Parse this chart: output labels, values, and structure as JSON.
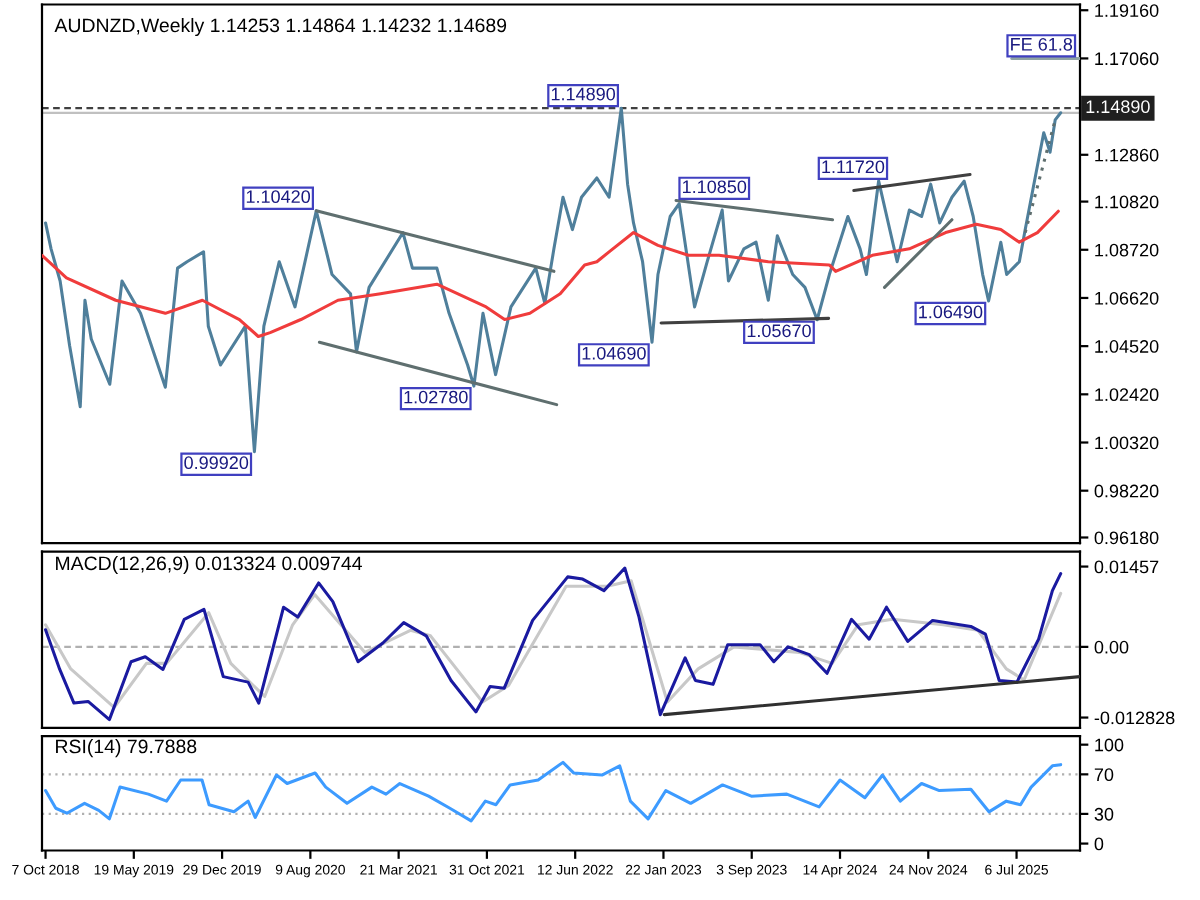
{
  "chart_data": [
    {
      "type": "line",
      "title": "AUDNZD,Weekly 1.14253 1.14864 1.14232 1.14689",
      "tick_labels": "y",
      "xlim": [
        "2018-09-28",
        "2025-12-14"
      ],
      "ylim": [
        0.9593,
        1.1941
      ],
      "yticks": [
        {
          "value": 1.1916,
          "label": "1.19160"
        },
        {
          "value": 1.1706,
          "label": "1.17060"
        },
        {
          "value": 1.1286,
          "label": "1.12860"
        },
        {
          "value": 1.1082,
          "label": "1.10820"
        },
        {
          "value": 1.0872,
          "label": "1.08720"
        },
        {
          "value": 1.0662,
          "label": "1.06620"
        },
        {
          "value": 1.0452,
          "label": "1.04520"
        },
        {
          "value": 1.0242,
          "label": "1.02420"
        },
        {
          "value": 1.0032,
          "label": "1.00320"
        },
        {
          "value": 0.9822,
          "label": "0.98220"
        },
        {
          "value": 0.9618,
          "label": "0.96180"
        }
      ],
      "series": [
        {
          "color": "#4f7f9b",
          "x": [
            "2018-10-07",
            "2018-10-21",
            "2018-11-13",
            "2018-12-07",
            "2019-01-03",
            "2019-01-15",
            "2019-01-31",
            "2019-03-19",
            "2019-04-19",
            "2019-06-05",
            "2019-08-07",
            "2019-09-07",
            "2019-10-01",
            "2019-11-12",
            "2019-11-24",
            "2019-12-25",
            "2020-02-26",
            "2020-03-20",
            "2020-04-13",
            "2020-05-22",
            "2020-07-01",
            "2020-08-24",
            "2020-10-03",
            "2020-11-19",
            "2020-12-04",
            "2021-01-05",
            "2021-04-01",
            "2021-04-25",
            "2021-06-26",
            "2021-07-27",
            "2021-09-12",
            "2021-09-28",
            "2021-10-21",
            "2021-11-22",
            "2021-12-31",
            "2022-03-04",
            "2022-03-27",
            "2022-04-19",
            "2022-05-12",
            "2022-06-05",
            "2022-06-28",
            "2022-08-06",
            "2022-09-06",
            "2022-10-07",
            "2022-10-23",
            "2022-11-07",
            "2022-11-30",
            "2022-12-24",
            "2023-01-08",
            "2023-02-08",
            "2023-03-03",
            "2023-04-11",
            "2023-05-13",
            "2023-06-20",
            "2023-07-06",
            "2023-08-14",
            "2023-09-14",
            "2023-10-15",
            "2023-11-07",
            "2023-12-16",
            "2024-01-16",
            "2024-02-16",
            "2024-03-18",
            "2024-05-04",
            "2024-06-04",
            "2024-06-20",
            "2024-07-21",
            "2024-09-06",
            "2024-10-07",
            "2024-11-07",
            "2024-11-30",
            "2024-12-23",
            "2025-01-23",
            "2025-02-23",
            "2025-03-18",
            "2025-04-11",
            "2025-04-26",
            "2025-05-27",
            "2025-06-11",
            "2025-07-13",
            "2025-07-28",
            "2025-09-13",
            "2025-09-29",
            "2025-10-12",
            "2025-10-26"
          ],
          "values": [
            1.0989,
            1.0876,
            1.0736,
            1.0455,
            1.0188,
            1.0652,
            1.0483,
            1.0286,
            1.0736,
            1.0595,
            1.0273,
            1.0792,
            1.082,
            1.0863,
            1.0539,
            1.037,
            1.0539,
            0.9992,
            1.0539,
            1.082,
            1.0623,
            1.1042,
            1.0764,
            1.068,
            1.0427,
            1.0708,
            1.0947,
            1.0792,
            1.0792,
            1.0595,
            1.037,
            1.0278,
            1.0595,
            1.0328,
            1.0623,
            1.0792,
            1.0638,
            1.0876,
            1.1101,
            1.096,
            1.1101,
            1.1185,
            1.1101,
            1.1489,
            1.1158,
            1.0989,
            1.082,
            1.0469,
            1.0764,
            1.1017,
            1.1073,
            1.0623,
            1.082,
            1.1045,
            1.0736,
            1.0876,
            1.0905,
            1.0652,
            1.0933,
            1.0764,
            1.0708,
            1.0567,
            1.0764,
            1.1017,
            1.0876,
            1.0764,
            1.1172,
            1.082,
            1.1045,
            1.1017,
            1.1158,
            1.0989,
            1.1101,
            1.1171,
            1.1017,
            1.0764,
            1.0649,
            1.0905,
            1.0764,
            1.082,
            1.096,
            1.1382,
            1.1297,
            1.1438,
            1.1469
          ]
        },
        {
          "color": "#f03c3c",
          "x": [
            "2018-09-28",
            "2018-11-29",
            "2019-04-03",
            "2019-08-07",
            "2019-11-09",
            "2020-02-11",
            "2020-03-30",
            "2020-04-29",
            "2020-07-16",
            "2020-10-18",
            "2021-02-03",
            "2021-06-26",
            "2021-10-29",
            "2021-12-15",
            "2022-02-17",
            "2022-05-05",
            "2022-07-06",
            "2022-08-06",
            "2022-09-06",
            "2022-11-07",
            "2023-01-08",
            "2023-03-26",
            "2023-06-12",
            "2023-10-15",
            "2024-03-18",
            "2024-04-03",
            "2024-07-05",
            "2024-10-07",
            "2025-01-07",
            "2025-03-26",
            "2025-05-27",
            "2025-07-13",
            "2025-08-28",
            "2025-10-20"
          ],
          "values": [
            1.0848,
            1.075,
            1.0652,
            1.0595,
            1.0652,
            1.0568,
            1.0494,
            1.0511,
            1.0568,
            1.0652,
            1.068,
            1.0722,
            1.0623,
            1.0568,
            1.0595,
            1.068,
            1.0806,
            1.082,
            1.0863,
            1.0947,
            1.0891,
            1.0848,
            1.0848,
            1.082,
            1.0806,
            1.0778,
            1.0848,
            1.0876,
            1.0947,
            1.0983,
            1.096,
            1.0905,
            1.0947,
            1.104
          ]
        },
        {
          "color": "#5f6f6f",
          "x": [
            "2020-08-24",
            "2022-04-19"
          ],
          "values": [
            1.1042,
            1.0778
          ]
        },
        {
          "color": "#5f6f6f",
          "x": [
            "2020-09-01",
            "2022-04-26"
          ],
          "values": [
            1.0469,
            1.0197
          ]
        },
        {
          "color": "#5f6f6f",
          "x": [
            "2023-02-23",
            "2024-03-26"
          ],
          "values": [
            1.1087,
            1.1003
          ]
        },
        {
          "color": "#404040",
          "x": [
            "2023-01-16",
            "2024-03-16"
          ],
          "values": [
            1.0553,
            1.0573
          ]
        },
        {
          "color": "#404040",
          "x": [
            "2024-05-19",
            "2025-03-10"
          ],
          "values": [
            1.113,
            1.12
          ]
        },
        {
          "color": "#5f6f6f",
          "x": [
            "2024-08-05",
            "2025-01-23"
          ],
          "values": [
            1.0708,
            1.1003
          ]
        },
        {
          "color": "#5f6f6f",
          "line_style": "dotted",
          "x": [
            "2025-07-28",
            "2025-10-12"
          ],
          "values": [
            1.0947,
            1.1438
          ]
        },
        {
          "color": "#8fa3a3",
          "x": [
            "2025-06-24",
            "2025-12-14"
          ],
          "values": [
            1.1706,
            1.1706
          ]
        }
      ],
      "ref_lines": [
        {
          "axis": "y",
          "value": 1.1489,
          "label": "1.14890",
          "color": "#404040",
          "line_style": "dashed"
        },
        {
          "axis": "y",
          "value": 1.1469,
          "color": "#c0c0c0",
          "line_style": "solid"
        }
      ],
      "annotations": [
        {
          "text": "1.10420",
          "x": "2020-08-24",
          "y": 1.1042
        },
        {
          "text": "0.99920",
          "x": "2020-03-20",
          "y": 0.9992
        },
        {
          "text": "1.02780",
          "x": "2021-09-28",
          "y": 1.0278
        },
        {
          "text": "1.14890",
          "x": "2022-10-07",
          "y": 1.1489
        },
        {
          "text": "1.10850",
          "x": "2023-02-23",
          "y": 1.1085
        },
        {
          "text": "1.04690",
          "x": "2022-12-24",
          "y": 1.0469
        },
        {
          "text": "1.05670",
          "x": "2024-02-16",
          "y": 1.0567
        },
        {
          "text": "1.11720",
          "x": "2024-08-20",
          "y": 1.1172
        },
        {
          "text": "1.06490",
          "x": "2025-04-26",
          "y": 1.0649
        },
        {
          "text": "FE 61.8",
          "x": "2025-12-10",
          "y": 1.1706
        }
      ]
    },
    {
      "type": "line",
      "title": "MACD(12,26,9) 0.013324 0.009744",
      "tick_labels": "y",
      "xlim": [
        "2018-09-28",
        "2025-12-14"
      ],
      "ylim": [
        -0.0147,
        0.0173
      ],
      "yticks": [
        0.01457,
        {
          "value": 0,
          "label": "0.00"
        },
        -0.012828
      ],
      "series": [
        {
          "color": "#c8c8c8",
          "x": [
            "2018-10-07",
            "2018-12-10",
            "2019-03-30",
            "2019-06-20",
            "2019-08-10",
            "2019-11-25",
            "2020-01-20",
            "2020-04-15",
            "2020-06-25",
            "2020-08-20",
            "2020-12-25",
            "2021-04-20",
            "2021-06-10",
            "2021-10-20",
            "2021-12-25",
            "2022-05-20",
            "2022-09-01",
            "2022-11-01",
            "2023-02-01",
            "2023-04-20",
            "2023-07-20",
            "2024-01-01",
            "2024-03-25",
            "2024-05-30",
            "2024-08-25",
            "2025-01-01",
            "2025-03-30",
            "2025-06-10",
            "2025-07-25",
            "2025-10-26"
          ],
          "values": [
            0.004,
            -0.004,
            -0.011,
            -0.003,
            -0.003,
            0.0062,
            -0.003,
            -0.009,
            0.004,
            0.0095,
            -0.001,
            0.003,
            0.002,
            -0.01,
            -0.007,
            0.011,
            0.011,
            0.012,
            -0.01,
            -0.004,
            0.0,
            -0.001,
            -0.003,
            0.004,
            0.005,
            0.004,
            0.003,
            -0.004,
            -0.006,
            0.0097
          ]
        },
        {
          "color": "#1a1aa0",
          "x": [
            "2018-10-07",
            "2018-11-12",
            "2018-12-18",
            "2019-01-23",
            "2019-03-18",
            "2019-05-12",
            "2019-06-17",
            "2019-08-01",
            "2019-09-24",
            "2019-11-13",
            "2020-01-01",
            "2020-03-04",
            "2020-03-31",
            "2020-06-02",
            "2020-07-08",
            "2020-08-30",
            "2020-10-05",
            "2020-12-08",
            "2021-02-09",
            "2021-04-03",
            "2021-05-30",
            "2021-08-01",
            "2021-10-03",
            "2021-11-08",
            "2021-12-14",
            "2022-02-24",
            "2022-05-24",
            "2022-07-01",
            "2022-08-24",
            "2022-10-16",
            "2022-11-21",
            "2023-01-14",
            "2023-03-18",
            "2023-04-13",
            "2023-05-28",
            "2023-07-04",
            "2023-09-24",
            "2023-10-29",
            "2023-12-04",
            "2024-01-27",
            "2024-03-12",
            "2024-05-13",
            "2024-06-27",
            "2024-08-10",
            "2024-10-03",
            "2024-12-05",
            "2025-03-12",
            "2025-04-18",
            "2025-05-23",
            "2025-07-07",
            "2025-08-31",
            "2025-10-05",
            "2025-10-26"
          ],
          "values": [
            0.0031,
            -0.0041,
            -0.0102,
            -0.0099,
            -0.0132,
            -0.0027,
            -0.0018,
            -0.0041,
            0.005,
            0.0068,
            -0.0054,
            -0.0064,
            -0.0102,
            0.0072,
            0.0054,
            0.0116,
            0.0082,
            -0.0027,
            0.0007,
            0.0044,
            0.002,
            -0.0061,
            -0.0118,
            -0.0072,
            -0.0075,
            0.0048,
            0.0127,
            0.0123,
            0.0102,
            0.0143,
            0.0054,
            -0.0123,
            -0.002,
            -0.0061,
            -0.0068,
            0.0004,
            0.0004,
            -0.0027,
            0.0,
            -0.0014,
            -0.0048,
            0.005,
            0.0014,
            0.0072,
            0.001,
            0.0048,
            0.0037,
            0.0023,
            -0.0061,
            -0.0064,
            0.0014,
            0.0102,
            0.0133
          ]
        },
        {
          "color": "#303030",
          "x": [
            "2023-01-24",
            "2025-12-14"
          ],
          "values": [
            -0.0123,
            -0.0054
          ]
        }
      ],
      "ref_lines": [
        {
          "axis": "y",
          "value": 0,
          "color": "#b0b0b0",
          "line_style": "dashed"
        }
      ]
    },
    {
      "type": "line",
      "title": "RSI(14) 79.7888",
      "xlim": [
        "2018-09-28",
        "2025-12-14"
      ],
      "xticks": [
        {
          "value": "2018-10-07",
          "label": "7 Oct 2018"
        },
        {
          "value": "2019-05-19",
          "label": "19 May 2019"
        },
        {
          "value": "2019-12-29",
          "label": "29 Dec 2019"
        },
        {
          "value": "2020-08-09",
          "label": "9 Aug 2020"
        },
        {
          "value": "2021-03-21",
          "label": "21 Mar 2021"
        },
        {
          "value": "2021-10-31",
          "label": "31 Oct 2021"
        },
        {
          "value": "2022-06-12",
          "label": "12 Jun 2022"
        },
        {
          "value": "2023-01-22",
          "label": "22 Jan 2023"
        },
        {
          "value": "2023-09-03",
          "label": "3 Sep 2023"
        },
        {
          "value": "2024-04-14",
          "label": "14 Apr 2024"
        },
        {
          "value": "2024-11-24",
          "label": "24 Nov 2024"
        },
        {
          "value": "2025-07-06",
          "label": "6 Jul 2025"
        }
      ],
      "ylim": [
        -7,
        108.6
      ],
      "yticks": [
        100,
        70,
        30,
        0
      ],
      "series": [
        {
          "color": "#3d9bff",
          "x": [
            "2018-10-07",
            "2018-11-02",
            "2018-11-30",
            "2019-01-14",
            "2019-02-19",
            "2019-03-18",
            "2019-04-14",
            "2019-06-25",
            "2019-08-10",
            "2019-09-15",
            "2019-11-08",
            "2019-11-26",
            "2020-01-28",
            "2020-03-04",
            "2020-03-22",
            "2020-05-15",
            "2020-06-11",
            "2020-08-21",
            "2020-09-17",
            "2020-11-10",
            "2021-01-12",
            "2021-02-17",
            "2021-03-24",
            "2021-06-05",
            "2021-07-29",
            "2021-09-21",
            "2021-10-27",
            "2021-11-23",
            "2021-12-29",
            "2022-03-10",
            "2022-05-12",
            "2022-06-08",
            "2022-08-19",
            "2022-10-03",
            "2022-10-30",
            "2022-12-14",
            "2023-01-28",
            "2023-04-01",
            "2023-06-21",
            "2023-09-02",
            "2023-12-01",
            "2024-02-21",
            "2024-04-14",
            "2024-06-16",
            "2024-07-31",
            "2024-09-14",
            "2024-11-07",
            "2024-12-22",
            "2025-03-12",
            "2025-04-27",
            "2025-06-10",
            "2025-07-16",
            "2025-08-12",
            "2025-10-05",
            "2025-10-26"
          ],
          "values": [
            53.6,
            35.7,
            30.7,
            40.7,
            33.6,
            25,
            57.1,
            50,
            42.9,
            64.3,
            64.3,
            39.3,
            32.1,
            42.9,
            26.4,
            69.3,
            60.7,
            71.4,
            57.1,
            40.7,
            57.1,
            50,
            60.7,
            47.9,
            35.7,
            22.9,
            42.9,
            39.3,
            59.3,
            64.3,
            82.1,
            71.4,
            69.3,
            78.6,
            42.9,
            25,
            53.6,
            40.7,
            59.3,
            47.9,
            50,
            37.1,
            64.3,
            46.4,
            69.3,
            42.9,
            60.7,
            53.6,
            55,
            32.1,
            42.9,
            39.3,
            57.1,
            78.6,
            79.8
          ]
        }
      ],
      "ref_lines": [
        {
          "axis": "y",
          "value": 70,
          "color": "#b0b0b0",
          "line_style": "dotted"
        },
        {
          "axis": "y",
          "value": 30,
          "color": "#b0b0b0",
          "line_style": "dotted"
        }
      ]
    }
  ]
}
